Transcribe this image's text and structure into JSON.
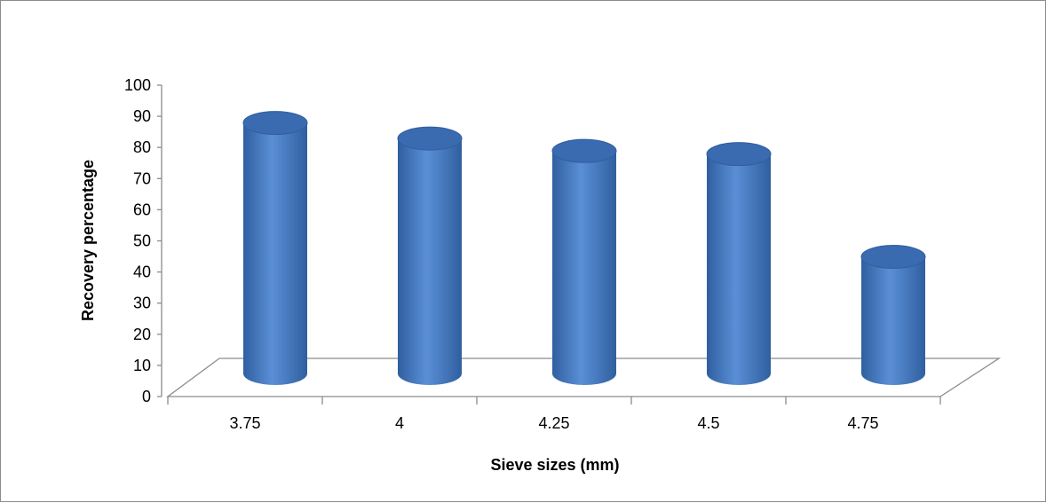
{
  "chart_data": {
    "type": "bar",
    "categories": [
      "3.75",
      "4",
      "4.25",
      "4.5",
      "4.75"
    ],
    "values": [
      93,
      88,
      84,
      83,
      50
    ],
    "title": "",
    "xlabel": "Sieve sizes (mm)",
    "ylabel": "Recovery percentage",
    "ylim": [
      0,
      100
    ],
    "yticks": [
      0,
      10,
      20,
      30,
      40,
      50,
      60,
      70,
      80,
      90,
      100
    ],
    "grid": false,
    "legend": "none",
    "bar_style": "3d-cylinder",
    "colors": {
      "bar_light": "#5a8fd6",
      "bar_mid": "#4a7fcb",
      "bar_dark": "#2f5f9f",
      "bar_top": "#3a6bb0",
      "axis": "#8c8c8c"
    }
  }
}
